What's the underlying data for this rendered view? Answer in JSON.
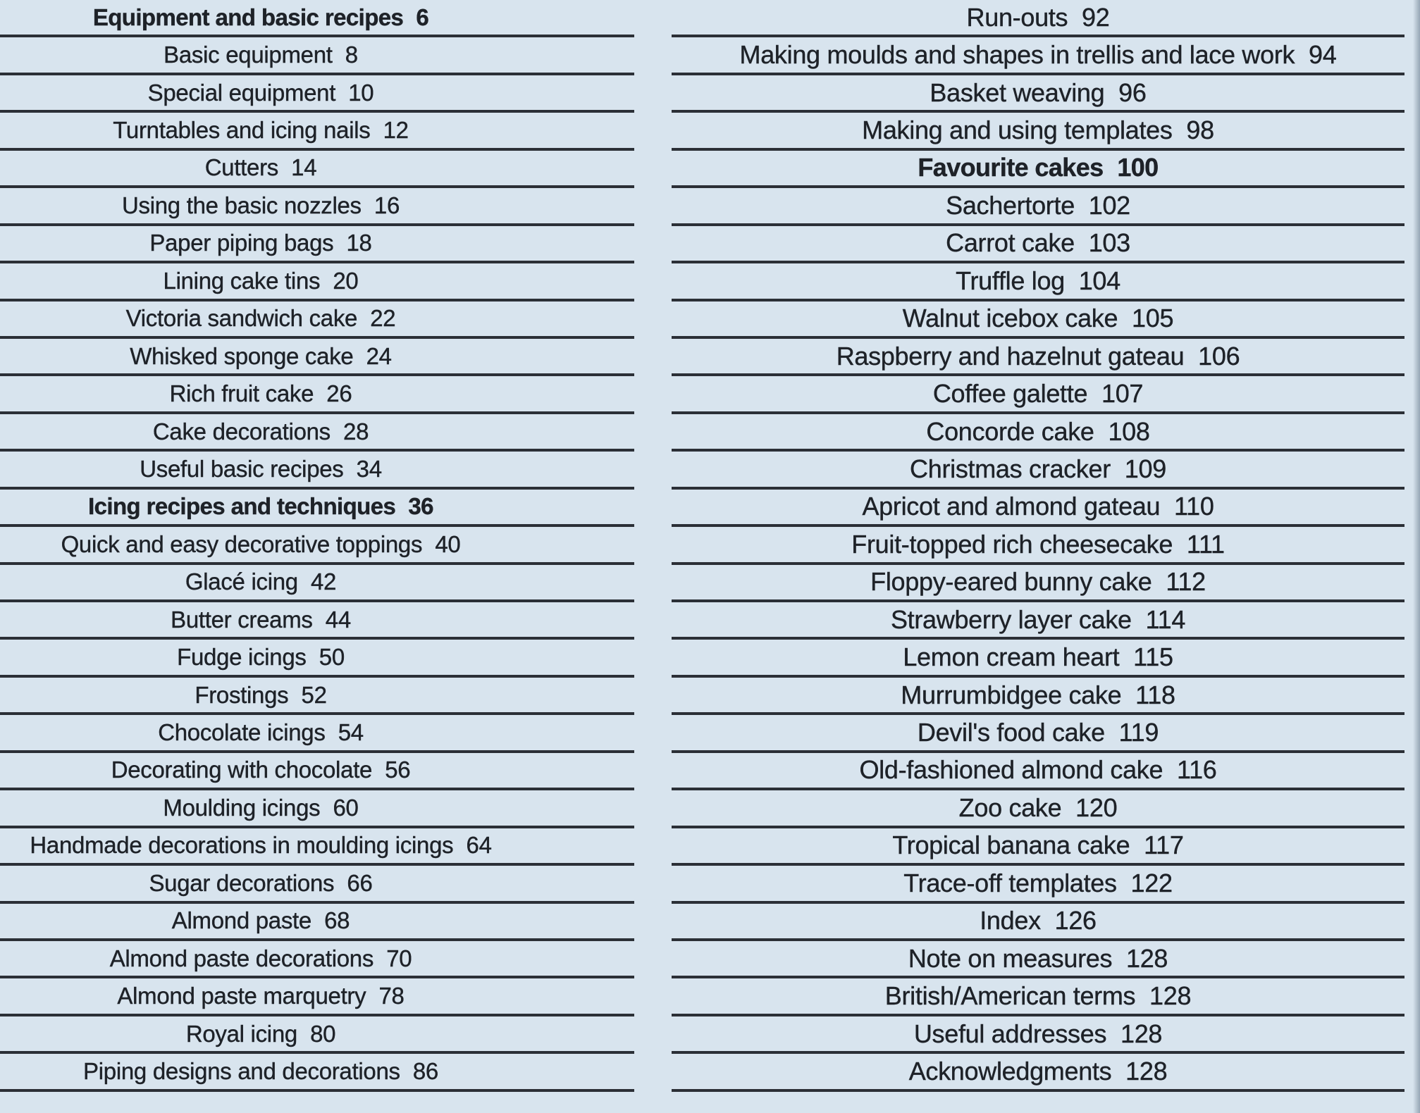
{
  "page": {
    "background_color": "#d8e4ee",
    "text_color": "#1e2228",
    "rule_color": "#2b2f36"
  },
  "columns": {
    "left": {
      "items": [
        {
          "title": "Equipment and basic recipes",
          "page": "6",
          "bold": true
        },
        {
          "title": "Basic equipment",
          "page": "8",
          "bold": false
        },
        {
          "title": "Special equipment",
          "page": "10",
          "bold": false
        },
        {
          "title": "Turntables and icing nails",
          "page": "12",
          "bold": false
        },
        {
          "title": "Cutters",
          "page": "14",
          "bold": false
        },
        {
          "title": "Using the basic nozzles",
          "page": "16",
          "bold": false
        },
        {
          "title": "Paper piping bags",
          "page": "18",
          "bold": false
        },
        {
          "title": "Lining cake tins",
          "page": "20",
          "bold": false
        },
        {
          "title": "Victoria sandwich cake",
          "page": "22",
          "bold": false
        },
        {
          "title": "Whisked sponge cake",
          "page": "24",
          "bold": false
        },
        {
          "title": "Rich fruit cake",
          "page": "26",
          "bold": false
        },
        {
          "title": "Cake decorations",
          "page": "28",
          "bold": false
        },
        {
          "title": "Useful basic recipes",
          "page": "34",
          "bold": false
        },
        {
          "title": "Icing recipes and techniques",
          "page": "36",
          "bold": true
        },
        {
          "title": "Quick and easy decorative toppings",
          "page": "40",
          "bold": false
        },
        {
          "title": "Glacé icing",
          "page": "42",
          "bold": false
        },
        {
          "title": "Butter creams",
          "page": "44",
          "bold": false
        },
        {
          "title": "Fudge icings",
          "page": "50",
          "bold": false
        },
        {
          "title": "Frostings",
          "page": "52",
          "bold": false
        },
        {
          "title": "Chocolate icings",
          "page": "54",
          "bold": false
        },
        {
          "title": "Decorating with chocolate",
          "page": "56",
          "bold": false
        },
        {
          "title": "Moulding icings",
          "page": "60",
          "bold": false
        },
        {
          "title": "Handmade decorations in moulding icings",
          "page": "64",
          "bold": false
        },
        {
          "title": "Sugar decorations",
          "page": "66",
          "bold": false
        },
        {
          "title": "Almond paste",
          "page": "68",
          "bold": false
        },
        {
          "title": "Almond paste decorations",
          "page": "70",
          "bold": false
        },
        {
          "title": "Almond paste marquetry",
          "page": "78",
          "bold": false
        },
        {
          "title": "Royal icing",
          "page": "80",
          "bold": false
        },
        {
          "title": "Piping designs and decorations",
          "page": "86",
          "bold": false
        }
      ]
    },
    "right": {
      "items": [
        {
          "title": "Run-outs",
          "page": "92",
          "bold": false
        },
        {
          "title": "Making moulds and shapes in trellis and lace work",
          "page": "94",
          "bold": false
        },
        {
          "title": "Basket weaving",
          "page": "96",
          "bold": false
        },
        {
          "title": "Making and using templates",
          "page": "98",
          "bold": false
        },
        {
          "title": "Favourite cakes",
          "page": "100",
          "bold": true
        },
        {
          "title": "Sachertorte",
          "page": "102",
          "bold": false
        },
        {
          "title": "Carrot cake",
          "page": "103",
          "bold": false
        },
        {
          "title": "Truffle log",
          "page": "104",
          "bold": false
        },
        {
          "title": "Walnut icebox cake",
          "page": "105",
          "bold": false
        },
        {
          "title": "Raspberry and hazelnut gateau",
          "page": "106",
          "bold": false
        },
        {
          "title": "Coffee galette",
          "page": "107",
          "bold": false
        },
        {
          "title": "Concorde cake",
          "page": "108",
          "bold": false
        },
        {
          "title": "Christmas cracker",
          "page": "109",
          "bold": false
        },
        {
          "title": "Apricot and almond gateau",
          "page": "110",
          "bold": false
        },
        {
          "title": "Fruit-topped rich cheesecake",
          "page": "111",
          "bold": false
        },
        {
          "title": "Floppy-eared bunny cake",
          "page": "112",
          "bold": false
        },
        {
          "title": "Strawberry layer cake",
          "page": "114",
          "bold": false
        },
        {
          "title": "Lemon cream heart",
          "page": "115",
          "bold": false
        },
        {
          "title": "Murrumbidgee cake",
          "page": "118",
          "bold": false
        },
        {
          "title": "Devil's food cake",
          "page": "119",
          "bold": false
        },
        {
          "title": "Old-fashioned almond cake",
          "page": "116",
          "bold": false
        },
        {
          "title": "Zoo cake",
          "page": "120",
          "bold": false
        },
        {
          "title": "Tropical banana cake",
          "page": "117",
          "bold": false
        },
        {
          "title": "Trace-off templates",
          "page": "122",
          "bold": false
        },
        {
          "title": "Index",
          "page": "126",
          "bold": false
        },
        {
          "title": "Note on measures",
          "page": "128",
          "bold": false
        },
        {
          "title": "British/American terms",
          "page": "128",
          "bold": false
        },
        {
          "title": "Useful addresses",
          "page": "128",
          "bold": false
        },
        {
          "title": "Acknowledgments",
          "page": "128",
          "bold": false
        }
      ]
    }
  }
}
